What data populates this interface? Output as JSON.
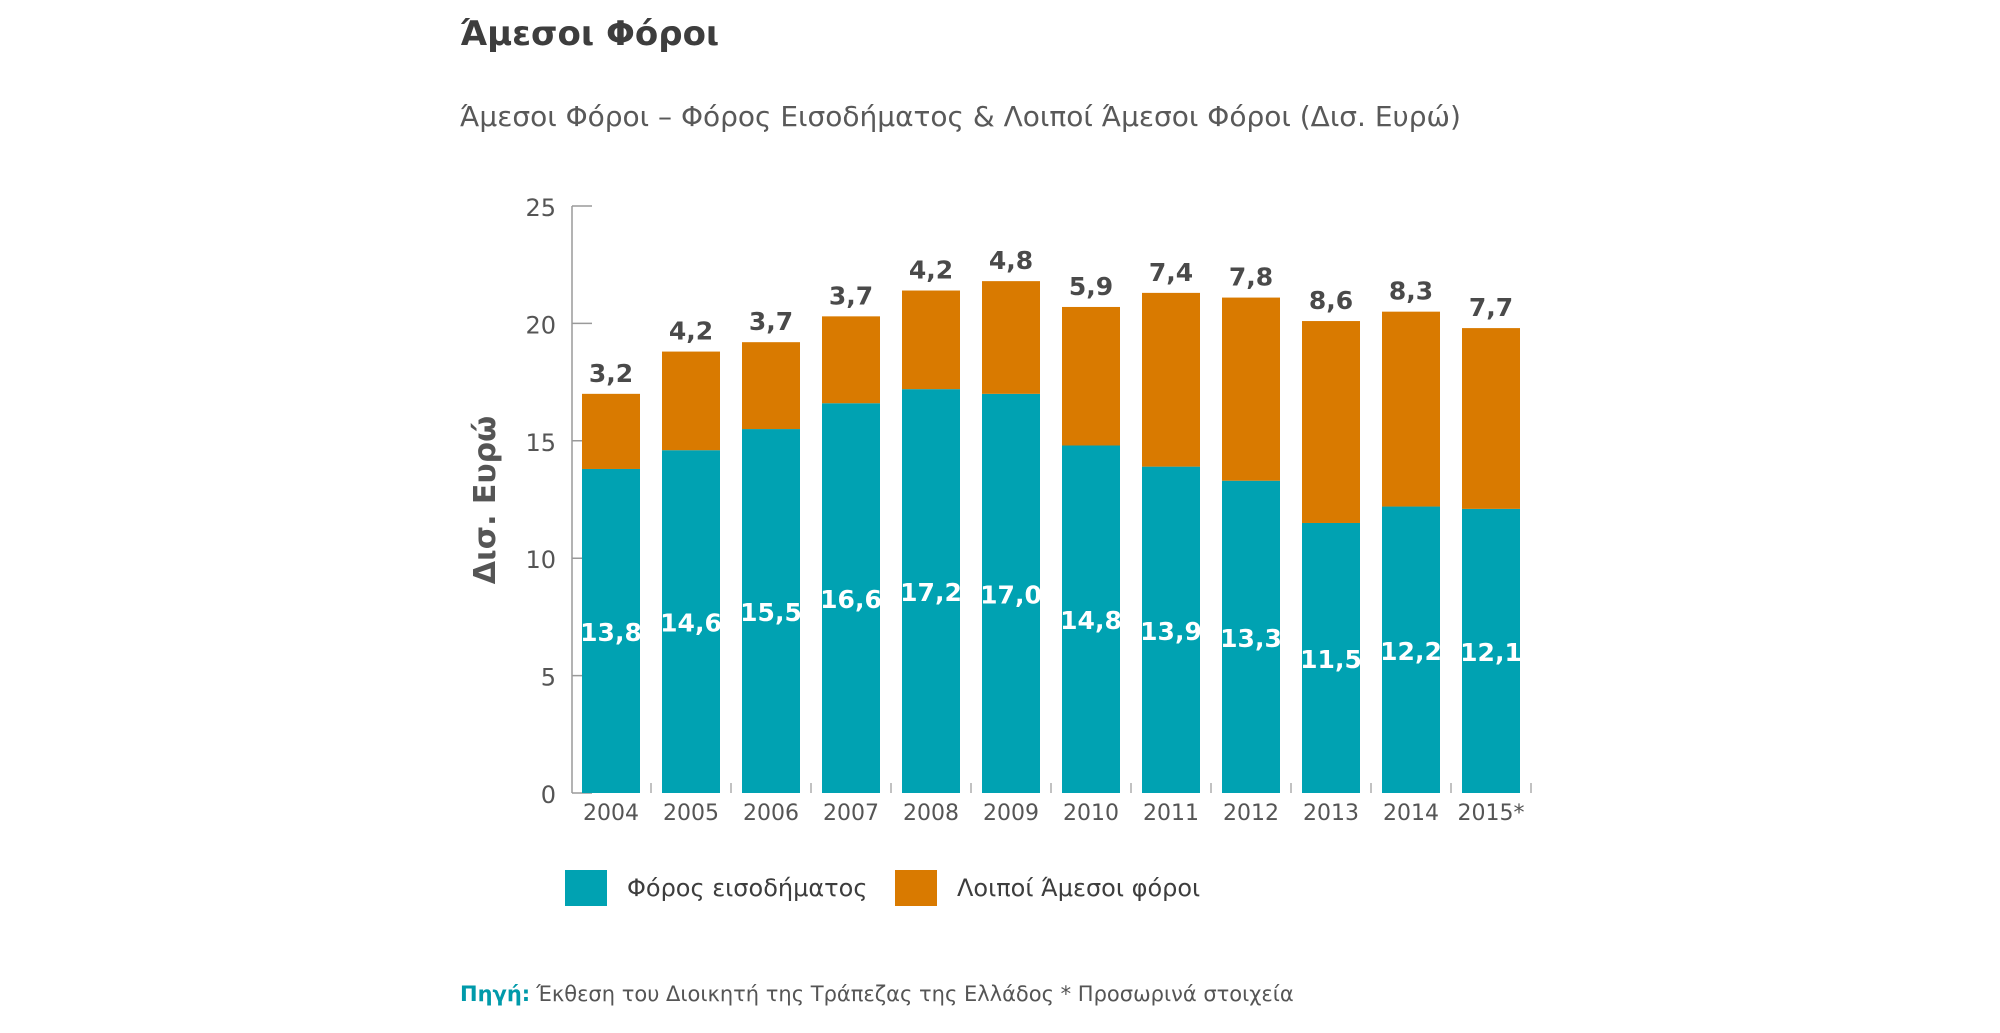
{
  "title": "Άμεσοι Φόροι",
  "subtitle": "Άμεσοι Φόροι – Φόρος Εισοδήματος & Λοιποί  Άμεσοι Φόροι (Δισ. Ευρώ)",
  "source": {
    "label": "Πηγή:",
    "text": "Έκθεση του Διοικητή της Τράπεζας της Ελλάδος * Προσωρινά στοιχεία"
  },
  "colors": {
    "income": "#00a2b2",
    "other": "#d97a00",
    "axis": "#9a9a9a"
  },
  "chart_data": {
    "type": "bar",
    "stacked": true,
    "ylabel": "Δισ. Ευρώ",
    "xlabel": "",
    "ylim": [
      0,
      25
    ],
    "yticks": [
      0,
      5,
      10,
      15,
      20,
      25
    ],
    "grid": false,
    "legend_position": "bottom-left",
    "categories": [
      "2004",
      "2005",
      "2006",
      "2007",
      "2008",
      "2009",
      "2010",
      "2011",
      "2012",
      "2013",
      "2014",
      "2015*"
    ],
    "series": [
      {
        "name": "Φόρος εισοδήματος",
        "values": [
          13.8,
          14.6,
          15.5,
          16.6,
          17.2,
          17.0,
          14.8,
          13.9,
          13.3,
          11.5,
          12.2,
          12.1
        ],
        "labels": [
          "13,8",
          "14,6",
          "15,5",
          "16,6",
          "17,2",
          "17,0",
          "14,8",
          "13,9",
          "13,3",
          "11,5",
          "12,2",
          "12,1"
        ]
      },
      {
        "name": "Λοιποί  Άμεσοι φόροι",
        "values": [
          3.2,
          4.2,
          3.7,
          3.7,
          4.2,
          4.8,
          5.9,
          7.4,
          7.8,
          8.6,
          8.3,
          7.7
        ],
        "labels": [
          "3,2",
          "4,2",
          "3,7",
          "3,7",
          "4,2",
          "4,8",
          "5,9",
          "7,4",
          "7,8",
          "8,6",
          "8,3",
          "7,7"
        ]
      }
    ]
  }
}
